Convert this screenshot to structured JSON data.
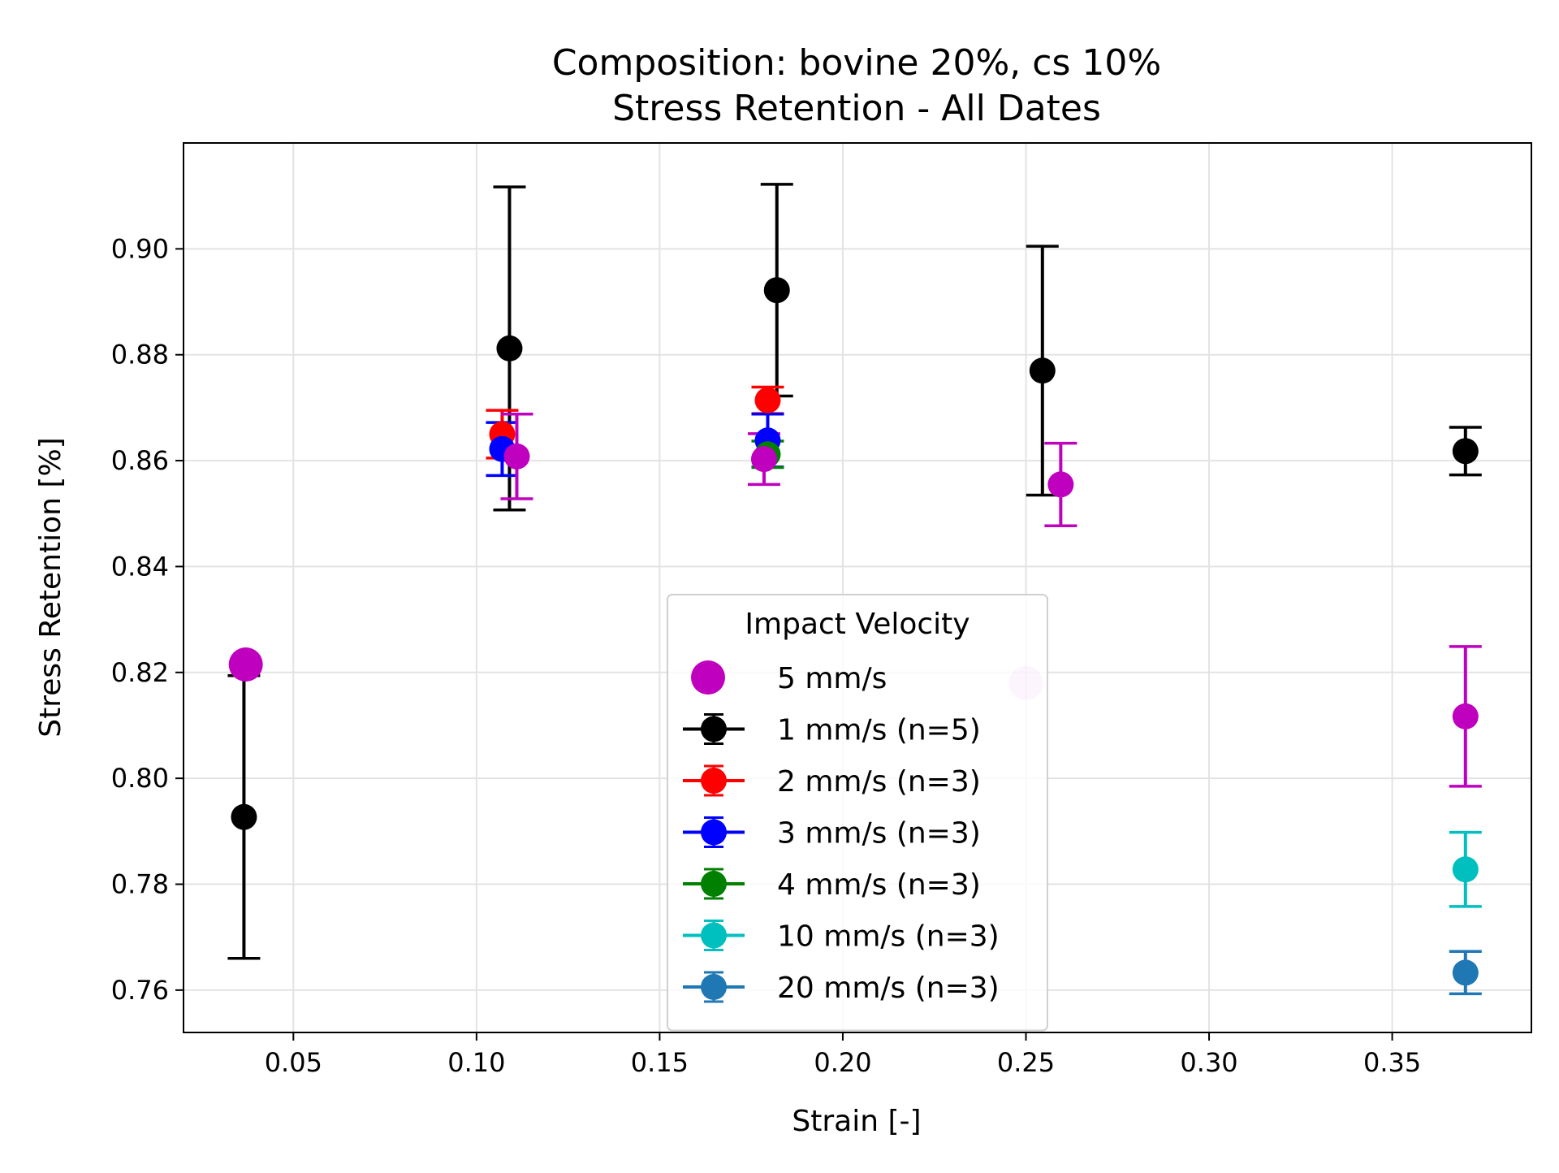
{
  "chart_data": {
    "type": "scatter",
    "title": "Composition: bovine 20%, cs 10%",
    "subtitle": "Stress Retention - All Dates",
    "xlabel": "Strain [-]",
    "ylabel": "Stress Retention [%]",
    "xlim": [
      0.02,
      0.388
    ],
    "ylim": [
      0.752,
      0.92
    ],
    "xticks": [
      0.05,
      0.1,
      0.15,
      0.2,
      0.25,
      0.3,
      0.35
    ],
    "xtick_labels": [
      "0.05",
      "0.10",
      "0.15",
      "0.20",
      "0.25",
      "0.30",
      "0.35"
    ],
    "yticks": [
      0.76,
      0.78,
      0.8,
      0.82,
      0.84,
      0.86,
      0.88,
      0.9
    ],
    "ytick_labels": [
      "0.76",
      "0.78",
      "0.80",
      "0.82",
      "0.84",
      "0.86",
      "0.88",
      "0.90"
    ],
    "grid": true,
    "legend": {
      "title": "Impact Velocity",
      "placement": "lower-center"
    },
    "series": [
      {
        "name": "5 mm/s",
        "color": "#bf00bf",
        "errorbars": false,
        "points": [
          {
            "x": 0.037,
            "y": 0.8215
          },
          {
            "x": 0.25,
            "y": 0.818,
            "alpha": 0.2
          }
        ]
      },
      {
        "name": "1 mm/s (n=5)",
        "color": "#000000",
        "errorbars": true,
        "points": [
          {
            "x": 0.0365,
            "y": 0.7927,
            "err": 0.0267
          },
          {
            "x": 0.109,
            "y": 0.8812,
            "err": 0.0305
          },
          {
            "x": 0.182,
            "y": 0.8922,
            "err": 0.02
          },
          {
            "x": 0.2545,
            "y": 0.877,
            "err": 0.0235
          },
          {
            "x": 0.37,
            "y": 0.8618,
            "err": 0.0045
          }
        ]
      },
      {
        "name": "2 mm/s (n=3)",
        "color": "#ff0000",
        "errorbars": true,
        "points": [
          {
            "x": 0.107,
            "y": 0.865,
            "err": 0.0045
          },
          {
            "x": 0.1795,
            "y": 0.8714,
            "err": 0.0025
          }
        ]
      },
      {
        "name": "3 mm/s (n=3)",
        "color": "#0000ff",
        "errorbars": true,
        "points": [
          {
            "x": 0.107,
            "y": 0.8622,
            "err": 0.005
          },
          {
            "x": 0.1795,
            "y": 0.8638,
            "err": 0.005
          }
        ]
      },
      {
        "name": "4 mm/s (n=3)",
        "color": "#008000",
        "errorbars": true,
        "points": [
          {
            "x": 0.1795,
            "y": 0.8612,
            "err": 0.0025
          }
        ]
      },
      {
        "name": "10 mm/s (n=3)",
        "color": "#00bfbf",
        "errorbars": true,
        "points": [
          {
            "x": 0.37,
            "y": 0.7828,
            "err": 0.007
          }
        ]
      },
      {
        "name": "20 mm/s (n=3)",
        "color": "#1f77b4",
        "errorbars": true,
        "points": [
          {
            "x": 0.37,
            "y": 0.7633,
            "err": 0.004
          }
        ]
      },
      {
        "name": "",
        "color": "#bf00bf",
        "errorbars": true,
        "points": [
          {
            "x": 0.111,
            "y": 0.8608,
            "err": 0.008
          },
          {
            "x": 0.1785,
            "y": 0.8603,
            "err": 0.0048
          },
          {
            "x": 0.2595,
            "y": 0.8555,
            "err": 0.0078
          },
          {
            "x": 0.37,
            "y": 0.8117,
            "err": 0.0132
          }
        ]
      }
    ]
  }
}
